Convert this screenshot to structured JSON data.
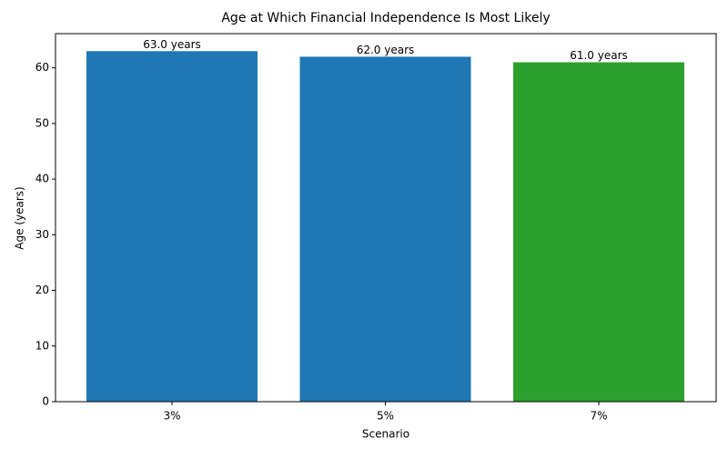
{
  "chart_data": {
    "type": "bar",
    "title": "Age at Which Financial Independence Is Most Likely",
    "x_label": "Scenario",
    "y_label": "Age (years)",
    "categories": [
      "3%",
      "5%",
      "7%"
    ],
    "values": [
      63,
      62,
      61
    ],
    "value_labels": [
      "63.0 years",
      "62.0 years",
      "61.0 years"
    ],
    "colors": [
      "#1f77b4",
      "#1f77b4",
      "#2ca02c"
    ],
    "ylim": [
      0,
      66.15
    ],
    "yticks": [
      0,
      10,
      20,
      30,
      40,
      50,
      60
    ]
  }
}
